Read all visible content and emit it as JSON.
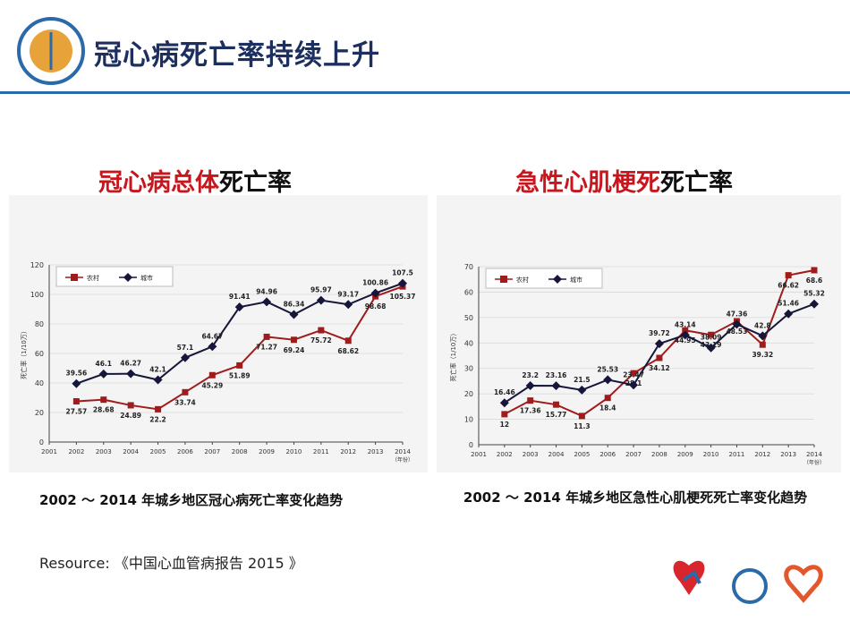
{
  "slide": {
    "title": "冠心病死亡率持续上升",
    "resource": "Resource: 《中国心血管病报告 2015 》"
  },
  "chart_data": [
    {
      "type": "line",
      "title_red": "冠心病总体",
      "title_black": "死亡率",
      "caption": "2002 ～ 2014 年城乡地区冠心病死亡率变化趋势",
      "y_label": "死亡率（1/10万）",
      "x_label": "（年份）",
      "x": [
        2002,
        2003,
        2004,
        2005,
        2006,
        2007,
        2008,
        2009,
        2010,
        2011,
        2012,
        2013,
        2014
      ],
      "xlim": [
        2001,
        2014
      ],
      "xticks": [
        2001,
        2002,
        2003,
        2004,
        2005,
        2006,
        2007,
        2008,
        2009,
        2010,
        2011,
        2012,
        2013,
        2014
      ],
      "ylim": [
        0,
        120
      ],
      "yticks": [
        0,
        20,
        40,
        60,
        80,
        100,
        120
      ],
      "grid": true,
      "legend": "top-left",
      "series": [
        {
          "name": "农村",
          "color": "#a01c1c",
          "marker": "square",
          "values": [
            27.57,
            28.68,
            24.89,
            22.2,
            33.74,
            45.29,
            51.89,
            71.27,
            69.24,
            75.72,
            68.62,
            98.68,
            105.37
          ]
        },
        {
          "name": "城市",
          "color": "#16163a",
          "marker": "diamond",
          "values": [
            39.56,
            46.1,
            46.27,
            42.1,
            57.1,
            64.67,
            91.41,
            94.96,
            86.34,
            95.97,
            93.17,
            100.86,
            107.5
          ]
        }
      ]
    },
    {
      "type": "line",
      "title_red": "急性心肌梗死",
      "title_black": "死亡率",
      "caption": "2002 ～ 2014 年城乡地区急性心肌梗死死亡率变化趋势",
      "y_label": "死亡率（1/10万）",
      "x_label": "（年份）",
      "x": [
        2002,
        2003,
        2004,
        2005,
        2006,
        2007,
        2008,
        2009,
        2010,
        2011,
        2012,
        2013,
        2014
      ],
      "xlim": [
        2001,
        2014
      ],
      "xticks": [
        2001,
        2002,
        2003,
        2004,
        2005,
        2006,
        2007,
        2008,
        2009,
        2010,
        2011,
        2012,
        2013,
        2014
      ],
      "ylim": [
        0,
        70
      ],
      "yticks": [
        0,
        10,
        20,
        30,
        40,
        50,
        60,
        70
      ],
      "grid": true,
      "legend": "top-left",
      "series": [
        {
          "name": "农村",
          "color": "#a01c1c",
          "marker": "square",
          "values": [
            12,
            17.36,
            15.77,
            11.3,
            18.4,
            28.1,
            34.12,
            44.95,
            43.19,
            48.53,
            39.32,
            66.62,
            68.6
          ]
        },
        {
          "name": "城市",
          "color": "#16163a",
          "marker": "diamond",
          "values": [
            16.46,
            23.2,
            23.16,
            21.5,
            25.53,
            23.47,
            39.72,
            43.14,
            38.09,
            47.36,
            42.8,
            51.46,
            55.32
          ]
        }
      ]
    }
  ]
}
